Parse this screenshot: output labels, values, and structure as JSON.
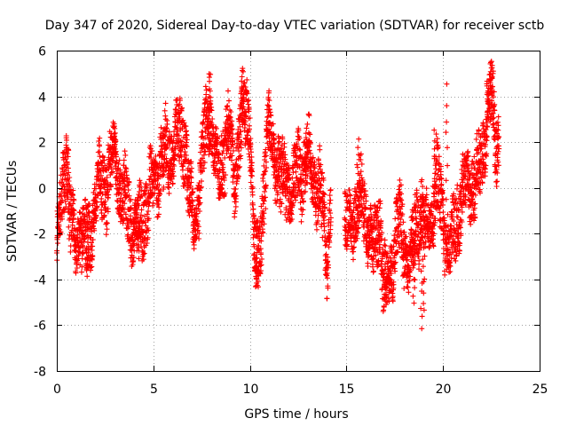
{
  "chart_data": {
    "type": "scatter",
    "title": "Day 347 of 2020, Sidereal Day-to-day VTEC variation (SDTVAR) for receiver sctb",
    "xlabel": "GPS time / hours",
    "ylabel": "SDTVAR / TECUs",
    "xlim": [
      0,
      25
    ],
    "ylim": [
      -8,
      6
    ],
    "xticks": [
      "0",
      "5",
      "10",
      "15",
      "20",
      "25"
    ],
    "yticks": [
      "-8",
      "-6",
      "-4",
      "-2",
      "0",
      "2",
      "4",
      "6"
    ],
    "grid": true,
    "marker": "+",
    "series": [
      {
        "name": "SDTVAR",
        "color": "#ff0000",
        "x_start": 0,
        "x_end": 22.9,
        "gap": [
          14.2,
          14.9
        ],
        "outline": [
          [
            0.0,
            -2.5
          ],
          [
            0.2,
            -1.0
          ],
          [
            0.4,
            0.5
          ],
          [
            0.5,
            1.8
          ],
          [
            0.6,
            -0.5
          ],
          [
            0.8,
            -2.0
          ],
          [
            1.0,
            -2.8
          ],
          [
            1.2,
            -1.5
          ],
          [
            1.4,
            -2.0
          ],
          [
            1.6,
            -2.5
          ],
          [
            1.8,
            -1.5
          ],
          [
            2.0,
            -0.5
          ],
          [
            2.2,
            0.3
          ],
          [
            2.5,
            0.0
          ],
          [
            2.8,
            1.0
          ],
          [
            3.0,
            1.5
          ],
          [
            3.2,
            0.5
          ],
          [
            3.4,
            -0.5
          ],
          [
            3.7,
            -1.0
          ],
          [
            4.0,
            -1.8
          ],
          [
            4.3,
            -1.5
          ],
          [
            4.6,
            -1.0
          ],
          [
            4.9,
            0.0
          ],
          [
            5.1,
            0.5
          ],
          [
            5.4,
            1.0
          ],
          [
            5.7,
            1.5
          ],
          [
            6.0,
            1.8
          ],
          [
            6.3,
            2.2
          ],
          [
            6.6,
            2.5
          ],
          [
            6.8,
            0.0
          ],
          [
            7.1,
            -1.5
          ],
          [
            7.4,
            0.0
          ],
          [
            7.7,
            2.5
          ],
          [
            7.9,
            3.5
          ],
          [
            8.1,
            2.0
          ],
          [
            8.3,
            0.5
          ],
          [
            8.6,
            1.5
          ],
          [
            8.9,
            2.5
          ],
          [
            9.2,
            0.5
          ],
          [
            9.5,
            2.5
          ],
          [
            9.8,
            3.5
          ],
          [
            10.0,
            3.0
          ],
          [
            10.2,
            -2.5
          ],
          [
            10.4,
            -3.5
          ],
          [
            10.6,
            -1.5
          ],
          [
            10.8,
            0.8
          ],
          [
            11.0,
            2.5
          ],
          [
            11.3,
            1.5
          ],
          [
            11.6,
            0.0
          ],
          [
            11.9,
            0.5
          ],
          [
            12.2,
            -0.5
          ],
          [
            12.5,
            1.0
          ],
          [
            12.8,
            0.5
          ],
          [
            13.1,
            1.5
          ],
          [
            13.4,
            0.0
          ],
          [
            13.7,
            -0.5
          ],
          [
            14.0,
            -3.0
          ],
          [
            14.2,
            -0.5
          ],
          [
            14.9,
            -2.0
          ],
          [
            15.2,
            -1.5
          ],
          [
            15.5,
            -1.0
          ],
          [
            15.8,
            -0.5
          ],
          [
            16.1,
            -1.5
          ],
          [
            16.4,
            -3.0
          ],
          [
            16.7,
            -1.0
          ],
          [
            16.9,
            -4.0
          ],
          [
            17.1,
            -4.5
          ],
          [
            17.4,
            -3.0
          ],
          [
            17.7,
            -1.5
          ],
          [
            18.0,
            -2.5
          ],
          [
            18.3,
            -3.5
          ],
          [
            18.6,
            -1.5
          ],
          [
            18.9,
            -1.0
          ],
          [
            19.1,
            -2.0
          ],
          [
            19.4,
            -1.0
          ],
          [
            19.7,
            0.0
          ],
          [
            20.0,
            -1.0
          ],
          [
            20.2,
            -2.5
          ],
          [
            20.4,
            -3.0
          ],
          [
            20.6,
            -1.5
          ],
          [
            20.8,
            -1.0
          ],
          [
            21.0,
            -0.5
          ],
          [
            21.3,
            0.5
          ],
          [
            21.6,
            0.0
          ],
          [
            21.9,
            1.0
          ],
          [
            22.1,
            2.0
          ],
          [
            22.3,
            3.0
          ],
          [
            22.5,
            4.0
          ],
          [
            22.7,
            2.5
          ],
          [
            22.9,
            1.8
          ]
        ],
        "spikes": [
          [
            0.55,
            2.2
          ],
          [
            3.0,
            2.2
          ],
          [
            7.9,
            5.0
          ],
          [
            9.6,
            4.4
          ],
          [
            10.3,
            -4.4
          ],
          [
            10.4,
            -4.2
          ],
          [
            17.0,
            -5.1
          ],
          [
            18.5,
            -5.0
          ],
          [
            18.9,
            -6.2
          ],
          [
            19.0,
            -5.4
          ],
          [
            19.6,
            2.6
          ],
          [
            20.2,
            4.4
          ],
          [
            22.5,
            5.6
          ],
          [
            22.3,
            4.8
          ],
          [
            15.6,
            2.0
          ],
          [
            12.9,
            2.6
          ],
          [
            4.2,
            -3.0
          ],
          [
            1.6,
            -3.9
          ]
        ]
      }
    ]
  }
}
